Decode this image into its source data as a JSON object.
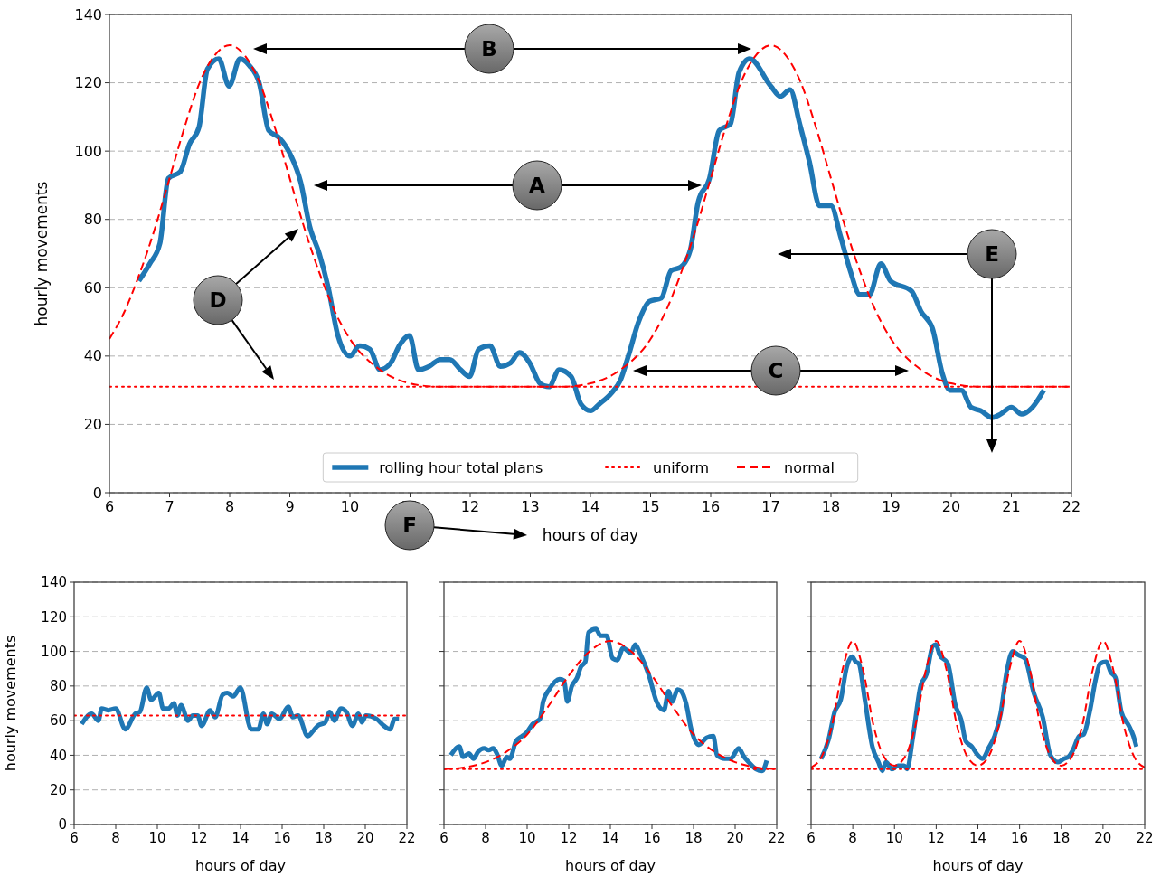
{
  "chart_data": [
    {
      "type": "line",
      "xlabel": "hours of day",
      "ylabel": "hourly movements",
      "xlim": [
        6,
        22
      ],
      "ylim": [
        0,
        140
      ],
      "xticks": [
        6,
        7,
        8,
        9,
        10,
        11,
        12,
        13,
        14,
        15,
        16,
        17,
        18,
        19,
        20,
        21,
        22
      ],
      "yticks": [
        0,
        20,
        40,
        60,
        80,
        100,
        120,
        140
      ],
      "grid": "y",
      "legend": "bottom",
      "annotations": [
        "A",
        "B",
        "C",
        "D",
        "E",
        "F"
      ],
      "series": [
        {
          "name": "rolling hour total plans",
          "color": "#1f77b4",
          "line_style": "solid",
          "x": [
            6.49,
            6.67,
            6.84,
            6.98,
            7.18,
            7.33,
            7.49,
            7.63,
            7.82,
            7.99,
            8.17,
            8.33,
            8.49,
            8.65,
            8.82,
            9.01,
            9.18,
            9.33,
            9.49,
            9.64,
            9.8,
            10.0,
            10.16,
            10.33,
            10.5,
            10.68,
            10.82,
            10.99,
            11.14,
            11.32,
            11.5,
            11.66,
            11.84,
            11.99,
            12.14,
            12.33,
            12.5,
            12.67,
            12.82,
            12.99,
            13.16,
            13.31,
            13.48,
            13.68,
            13.84,
            14.0,
            14.15,
            14.34,
            14.5,
            14.63,
            14.8,
            14.98,
            15.18,
            15.34,
            15.5,
            15.66,
            15.79,
            15.98,
            16.14,
            16.33,
            16.47,
            16.65,
            17.0,
            17.16,
            17.32,
            17.48,
            17.64,
            17.81,
            18.0,
            18.16,
            18.32,
            18.48,
            18.64,
            18.83,
            18.99,
            19.34,
            19.5,
            19.69,
            19.85,
            19.98,
            20.17,
            20.33,
            20.49,
            20.68,
            20.82,
            21.0,
            21.17,
            21.35,
            21.54
          ],
          "values": [
            62,
            67,
            73,
            92,
            94,
            102,
            107,
            124,
            127,
            119,
            127,
            125,
            120,
            106,
            104,
            99,
            91,
            78,
            70,
            60,
            46,
            40,
            43,
            42,
            36,
            38,
            43,
            46,
            36,
            37,
            39,
            39,
            36,
            34,
            42,
            43,
            37,
            38,
            41,
            38,
            32,
            31,
            36,
            34,
            26,
            24,
            26,
            29,
            33,
            40,
            50,
            56,
            57,
            65,
            66,
            71,
            85,
            92,
            106,
            108,
            123,
            127,
            119,
            116,
            118,
            108,
            97,
            84,
            84,
            75,
            65,
            58,
            58,
            67,
            62,
            59,
            53,
            48,
            35,
            30,
            30,
            25,
            24,
            22,
            23,
            25,
            23,
            25,
            30
          ]
        },
        {
          "name": "uniform",
          "color": "#ff0000",
          "line_style": "dotted",
          "x": [
            6,
            22
          ],
          "values": [
            31,
            31
          ]
        },
        {
          "name": "normal",
          "color": "#ff0000",
          "line_style": "dashed",
          "x": [
            6,
            6.25,
            6.5,
            6.75,
            7,
            7.25,
            7.5,
            7.75,
            8,
            8.25,
            8.5,
            8.75,
            9,
            9.25,
            9.5,
            9.75,
            10,
            10.5,
            11,
            11.5,
            12,
            13,
            13.5,
            14,
            14.5,
            15,
            15.25,
            15.5,
            15.75,
            16,
            16.25,
            16.5,
            16.75,
            17,
            17.25,
            17.5,
            17.75,
            18,
            18.25,
            18.5,
            18.75,
            19,
            19.5,
            20,
            20.5,
            21,
            22
          ],
          "values": [
            45,
            53,
            64,
            77,
            92,
            107,
            120,
            128,
            131,
            128,
            120,
            107,
            92,
            77,
            64,
            53,
            45,
            36,
            32,
            31,
            31,
            31,
            31,
            32,
            36,
            45,
            53,
            64,
            77,
            92,
            107,
            120,
            128,
            131,
            128,
            120,
            107,
            92,
            77,
            64,
            53,
            45,
            36,
            32,
            31,
            31,
            31
          ]
        }
      ]
    },
    {
      "type": "line",
      "xlabel": "hours of day",
      "ylabel": "hourly movements",
      "xlim": [
        6,
        22
      ],
      "ylim": [
        0,
        140
      ],
      "xticks": [
        6,
        8,
        10,
        12,
        14,
        16,
        18,
        20,
        22
      ],
      "yticks": [
        0,
        20,
        40,
        60,
        80,
        100,
        120,
        140
      ],
      "grid": "y",
      "series": [
        {
          "color": "#1f77b4",
          "line_style": "solid",
          "x": [
            6.36,
            6.84,
            7.17,
            7.32,
            7.64,
            8.0,
            8.46,
            8.94,
            9.16,
            9.49,
            9.7,
            10.07,
            10.28,
            10.54,
            10.8,
            10.97,
            11.14,
            11.48,
            11.7,
            11.94,
            12.13,
            12.54,
            12.78,
            13.14,
            13.36,
            13.65,
            13.99,
            14.51,
            14.86,
            15.1,
            15.28,
            15.5,
            15.87,
            16.3,
            16.52,
            16.77,
            17.23,
            17.49,
            17.71,
            18.07,
            18.29,
            18.51,
            18.83,
            19.09,
            19.38,
            19.67,
            19.84,
            20.03,
            20.54,
            20.9,
            21.19,
            21.41,
            21.62
          ],
          "values": [
            58,
            64,
            60,
            67,
            66,
            67,
            55,
            64,
            65,
            79,
            72,
            76,
            67,
            67,
            70,
            63,
            69,
            60,
            63,
            63,
            57,
            66,
            62,
            75,
            76,
            74,
            79,
            55,
            55,
            64,
            58,
            64,
            61,
            68,
            62,
            63,
            51,
            54,
            57,
            59,
            65,
            60,
            67,
            65,
            57,
            64,
            59,
            63,
            61,
            57,
            55,
            61,
            61
          ]
        },
        {
          "color": "#ff0000",
          "line_style": "dotted",
          "x": [
            6,
            22
          ],
          "values": [
            63,
            63
          ]
        }
      ]
    },
    {
      "type": "line",
      "xlabel": "hours of day",
      "xlim": [
        6,
        22
      ],
      "ylim": [
        0,
        140
      ],
      "xticks": [
        6,
        8,
        10,
        12,
        14,
        16,
        18,
        20,
        22
      ],
      "yticks": [
        0,
        20,
        40,
        60,
        80,
        100,
        120,
        140
      ],
      "grid": "y",
      "tick_labels": "x",
      "series": [
        {
          "color": "#1f77b4",
          "line_style": "solid",
          "x": [
            6.33,
            6.74,
            6.92,
            7.2,
            7.42,
            7.64,
            7.93,
            8.15,
            8.37,
            8.54,
            8.78,
            9.02,
            9.17,
            9.46,
            9.75,
            9.97,
            10.26,
            10.62,
            10.77,
            11.06,
            11.56,
            11.78,
            11.93,
            12.15,
            12.41,
            12.58,
            12.8,
            12.95,
            13.31,
            13.53,
            13.82,
            14.11,
            14.33,
            14.62,
            14.98,
            15.2,
            15.42,
            15.64,
            15.86,
            16.22,
            16.58,
            16.8,
            16.97,
            17.24,
            17.41,
            17.64,
            17.89,
            18.25,
            18.62,
            18.95,
            19.13,
            19.49,
            19.78,
            20.17,
            20.43,
            20.65,
            21.01,
            21.3,
            21.52
          ],
          "values": [
            40,
            45,
            39,
            41,
            38,
            42,
            44,
            43,
            44,
            41,
            34,
            39,
            38,
            48,
            51,
            53,
            58,
            61,
            71,
            78,
            84,
            83,
            71,
            80,
            85,
            91,
            94,
            111,
            113,
            109,
            109,
            96,
            95,
            102,
            99,
            104,
            99,
            93,
            86,
            71,
            66,
            77,
            71,
            78,
            77,
            70,
            55,
            46,
            50,
            51,
            40,
            38,
            38,
            44,
            39,
            36,
            32,
            31,
            37
          ]
        },
        {
          "color": "#ff0000",
          "line_style": "dotted",
          "x": [
            6,
            22
          ],
          "values": [
            32,
            32
          ]
        },
        {
          "color": "#ff0000",
          "line_style": "dashed",
          "x": [
            6,
            7,
            8,
            9,
            10,
            11,
            12,
            13,
            14,
            15,
            16,
            17,
            18,
            19,
            20,
            21,
            22
          ],
          "values": [
            32,
            33,
            36,
            42,
            52,
            68,
            86,
            100,
            106,
            100,
            86,
            68,
            52,
            42,
            36,
            33,
            32
          ]
        }
      ]
    },
    {
      "type": "line",
      "xlabel": "hours of day",
      "xlim": [
        6,
        22
      ],
      "ylim": [
        0,
        140
      ],
      "xticks": [
        6,
        8,
        10,
        12,
        14,
        16,
        18,
        20,
        22
      ],
      "yticks": [
        0,
        20,
        40,
        60,
        80,
        100,
        120,
        140
      ],
      "grid": "y",
      "tick_labels": "x",
      "series": [
        {
          "color": "#1f77b4",
          "line_style": "solid",
          "x": [
            6.48,
            6.84,
            7.13,
            7.42,
            7.71,
            7.97,
            8.14,
            8.29,
            8.58,
            8.94,
            9.23,
            9.42,
            9.59,
            9.88,
            10.17,
            10.46,
            10.6,
            10.89,
            11.25,
            11.54,
            11.83,
            11.98,
            12.17,
            12.56,
            12.92,
            13.21,
            13.42,
            13.71,
            14.0,
            14.22,
            14.51,
            14.8,
            15.09,
            15.38,
            15.67,
            15.93,
            16.25,
            16.68,
            17.11,
            17.48,
            17.84,
            18.13,
            18.34,
            18.56,
            18.85,
            19.07,
            19.36,
            19.65,
            19.86,
            20.15,
            20.37,
            20.59,
            20.88,
            21.24,
            21.46,
            21.6
          ],
          "values": [
            38,
            49,
            65,
            72,
            91,
            97,
            94,
            93,
            72,
            45,
            36,
            31,
            36,
            32,
            34,
            34,
            32,
            51,
            80,
            87,
            103,
            104,
            98,
            93,
            69,
            60,
            48,
            45,
            40,
            38,
            44,
            51,
            64,
            88,
            100,
            98,
            96,
            76,
            62,
            40,
            36,
            38,
            39,
            43,
            51,
            52,
            65,
            84,
            93,
            94,
            88,
            85,
            65,
            57,
            51,
            45
          ]
        },
        {
          "color": "#ff0000",
          "line_style": "dotted",
          "x": [
            6,
            22
          ],
          "values": [
            32,
            32
          ]
        },
        {
          "color": "#ff0000",
          "line_style": "dashed",
          "x": [
            6,
            6.5,
            7,
            7.5,
            8,
            8.5,
            9,
            9.5,
            10,
            10.5,
            11,
            11.5,
            12,
            12.5,
            13,
            13.5,
            14,
            14.5,
            15,
            15.5,
            16,
            16.5,
            17,
            17.5,
            18,
            18.5,
            19,
            19.5,
            20,
            20.5,
            21,
            21.5,
            22
          ],
          "values": [
            33,
            39,
            57,
            89,
            106,
            89,
            57,
            39,
            34,
            39,
            57,
            89,
            106,
            89,
            57,
            39,
            34,
            39,
            57,
            89,
            106,
            89,
            57,
            39,
            34,
            39,
            57,
            89,
            106,
            89,
            57,
            39,
            33
          ]
        }
      ]
    }
  ]
}
